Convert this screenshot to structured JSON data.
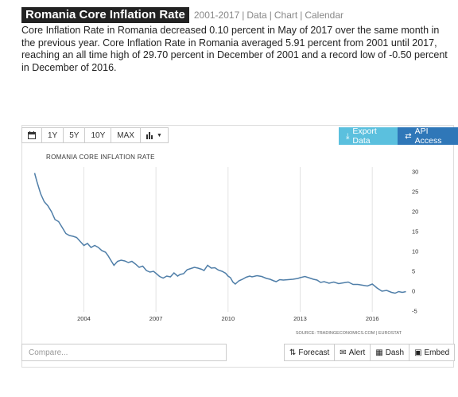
{
  "header": {
    "title": "Romania Core Inflation Rate",
    "range": "2001-2017",
    "links": [
      "Data",
      "Chart",
      "Calendar"
    ]
  },
  "description": "Core Inflation Rate in Romania decreased 0.10 percent in May of 2017 over the same month in the previous year. Core Inflation Rate in Romania averaged 5.91 percent from 2001 until 2017, reaching an all time high of 29.70 percent in December of 2001 and a record low of -0.50 percent in December of 2016.",
  "toolbar": {
    "calendar_icon": "calendar-icon",
    "periods": [
      "1Y",
      "5Y",
      "10Y",
      "MAX"
    ],
    "chart_type_icon": "bar-chart-icon",
    "export_label": "Export Data",
    "api_label": "API Access",
    "accent_light": "#5bc0de",
    "accent_dark": "#2f77b8"
  },
  "chart_name": "ROMANIA CORE INFLATION RATE",
  "source": "SOURCE: TRADINGECONOMICS.COM | EUROSTAT",
  "bottom": {
    "compare_placeholder": "Compare...",
    "forecast_label": "Forecast",
    "alert_label": "Alert",
    "dash_label": "Dash",
    "embed_label": "Embed"
  },
  "chart_data": {
    "type": "line",
    "title": "ROMANIA CORE INFLATION RATE",
    "xlabel": "",
    "ylabel": "",
    "x_ticks": [
      "2004",
      "2007",
      "2010",
      "2013",
      "2016"
    ],
    "y_ticks": [
      30,
      25,
      20,
      15,
      10,
      5,
      0,
      -5
    ],
    "ylim": [
      -5,
      30
    ],
    "xlim": [
      2001.9,
      2017.45
    ],
    "grid": "vertical",
    "line_color": "#4f7ea8",
    "series": [
      {
        "x": [
          2001.95,
          2002.05,
          2002.2,
          2002.35,
          2002.5,
          2002.65,
          2002.8,
          2002.95,
          2003.1,
          2003.25,
          2003.4,
          2003.55,
          2003.7,
          2003.85,
          2004.0,
          2004.15,
          2004.3,
          2004.45,
          2004.6,
          2004.75,
          2004.9,
          2005.0,
          2005.1,
          2005.25,
          2005.4,
          2005.55,
          2005.7,
          2005.85,
          2006.0,
          2006.15,
          2006.3,
          2006.45,
          2006.6,
          2006.75,
          2006.9,
          2007.0,
          2007.15,
          2007.3,
          2007.45,
          2007.6,
          2007.75,
          2007.9,
          2008.0,
          2008.15,
          2008.3,
          2008.45,
          2008.6,
          2008.75,
          2008.9,
          2009.0,
          2009.15,
          2009.3,
          2009.45,
          2009.6,
          2009.75,
          2009.9,
          2010.0,
          2010.1,
          2010.2,
          2010.3,
          2010.45,
          2010.6,
          2010.75,
          2010.9,
          2011.0,
          2011.2,
          2011.4,
          2011.6,
          2011.75,
          2011.9,
          2012.0,
          2012.15,
          2012.3,
          2012.5,
          2012.7,
          2012.9,
          2013.0,
          2013.2,
          2013.4,
          2013.55,
          2013.7,
          2013.85,
          2014.0,
          2014.2,
          2014.4,
          2014.6,
          2014.8,
          2015.0,
          2015.2,
          2015.4,
          2015.6,
          2015.8,
          2016.0,
          2016.2,
          2016.4,
          2016.6,
          2016.8,
          2016.95,
          2017.1,
          2017.25,
          2017.4
        ],
        "y": [
          29.7,
          27.5,
          24.5,
          22.5,
          21.5,
          20.0,
          18.0,
          17.5,
          16.0,
          14.5,
          14.0,
          13.8,
          13.5,
          12.5,
          11.5,
          12.0,
          11.0,
          11.5,
          11.0,
          10.2,
          9.8,
          9.0,
          8.0,
          6.5,
          7.5,
          7.8,
          7.6,
          7.2,
          7.5,
          6.8,
          6.0,
          6.3,
          5.2,
          4.8,
          5.0,
          4.5,
          3.7,
          3.3,
          3.8,
          3.6,
          4.6,
          3.8,
          4.2,
          4.4,
          5.4,
          5.7,
          6.0,
          5.8,
          5.5,
          5.2,
          6.5,
          5.8,
          5.9,
          5.3,
          5.0,
          4.5,
          3.8,
          3.4,
          2.3,
          1.8,
          2.6,
          3.0,
          3.5,
          3.8,
          3.6,
          3.9,
          3.7,
          3.2,
          3.0,
          2.6,
          2.4,
          2.9,
          2.8,
          2.9,
          3.0,
          3.2,
          3.4,
          3.7,
          3.3,
          3.0,
          2.8,
          2.2,
          2.4,
          2.0,
          2.3,
          1.9,
          2.1,
          2.3,
          1.7,
          1.7,
          1.5,
          1.3,
          1.8,
          0.8,
          0.0,
          0.2,
          -0.3,
          -0.5,
          -0.1,
          -0.3,
          -0.1
        ]
      }
    ]
  }
}
